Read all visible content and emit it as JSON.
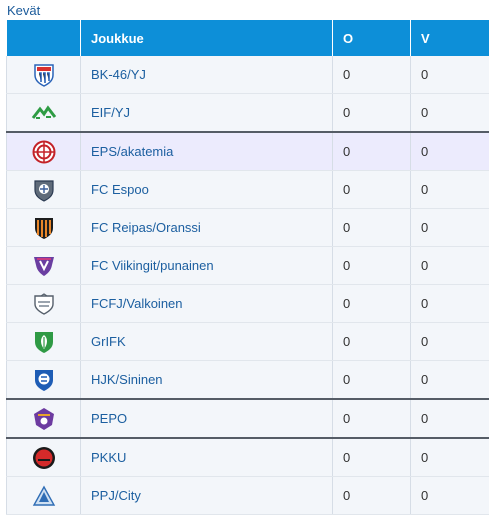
{
  "caption": "Kevät",
  "header": {
    "team": "Joukkue",
    "o": "O",
    "v": "V"
  },
  "rows": [
    {
      "team": "BK-46/YJ",
      "o": "0",
      "v": "0",
      "logo": "bk46-crest-icon"
    },
    {
      "team": "EIF/YJ",
      "o": "0",
      "v": "0",
      "logo": "eif-crest-icon"
    },
    {
      "team": "EPS/akatemia",
      "o": "0",
      "v": "0",
      "logo": "eps-crest-icon"
    },
    {
      "team": "FC Espoo",
      "o": "0",
      "v": "0",
      "logo": "fc-espoo-crest-icon"
    },
    {
      "team": "FC Reipas/Oranssi",
      "o": "0",
      "v": "0",
      "logo": "fc-reipas-crest-icon"
    },
    {
      "team": "FC Viikingit/punainen",
      "o": "0",
      "v": "0",
      "logo": "fc-viikingit-crest-icon"
    },
    {
      "team": "FCFJ/Valkoinen",
      "o": "0",
      "v": "0",
      "logo": "fcfj-crest-icon"
    },
    {
      "team": "GrIFK",
      "o": "0",
      "v": "0",
      "logo": "grifk-crest-icon"
    },
    {
      "team": "HJK/Sininen",
      "o": "0",
      "v": "0",
      "logo": "hjk-crest-icon"
    },
    {
      "team": "PEPO",
      "o": "0",
      "v": "0",
      "logo": "pepo-crest-icon"
    },
    {
      "team": "PKKU",
      "o": "0",
      "v": "0",
      "logo": "pkku-crest-icon"
    },
    {
      "team": "PPJ/City",
      "o": "0",
      "v": "0",
      "logo": "ppj-crest-icon"
    }
  ],
  "colors": {
    "header_bg": "#0d8fd8",
    "row_bg": "#f3f6fa",
    "highlight_bg": "#ecebfd",
    "link": "#1c5fa0"
  }
}
